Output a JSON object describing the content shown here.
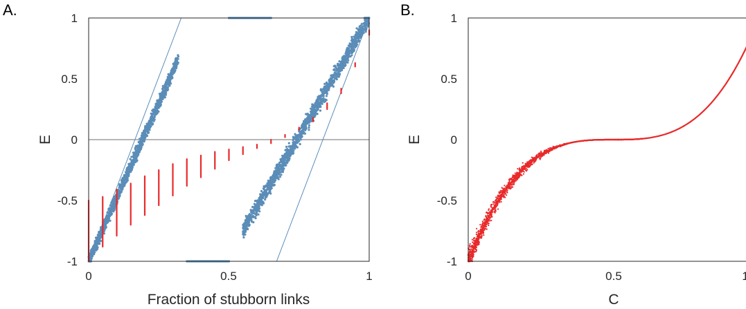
{
  "panels": [
    {
      "label": "A.",
      "xlabel": "Fraction of stubborn links",
      "ylabel": "E",
      "xticks": [
        "0",
        "0.5",
        "1"
      ],
      "yticks": [
        "1",
        "0.5",
        "0",
        "-0.5",
        "-1"
      ]
    },
    {
      "label": "B.",
      "xlabel": "C",
      "ylabel": "E",
      "xticks": [
        "0",
        "0.5",
        "1"
      ],
      "yticks": [
        "1",
        "0.5",
        "0",
        "-0.5",
        "-1"
      ]
    }
  ],
  "colors": {
    "blue": "#5b8db8",
    "red": "#e8292a",
    "axis": "#262626",
    "zero_line": "#6e6e6e"
  },
  "chart_data": [
    {
      "type": "scatter",
      "xlabel": "Fraction of stubborn links",
      "ylabel": "E",
      "xlim": [
        0,
        1
      ],
      "ylim": [
        -1,
        1
      ],
      "reference_line_y": 0,
      "series": [
        {
          "color": "#5b8db8",
          "bands": [
            {
              "x_range": [
                0,
                0.32
              ],
              "y_center_at_x_start": -1,
              "slope": 5.2,
              "width": 0.08
            },
            {
              "x_range": [
                0.55,
                1.0
              ],
              "y_center_at_x_start": -0.75,
              "slope": 3.9,
              "width": 0.1
            }
          ],
          "envelope": [
            [
              0,
              -1
            ],
            [
              0.33,
              1
            ],
            [
              1,
              1
            ],
            [
              0.67,
              -1
            ]
          ],
          "edge_points": [
            {
              "y": 1,
              "x_range": [
                0.5,
                0.65
              ]
            },
            {
              "y": -1,
              "x_range": [
                0.35,
                0.5
              ]
            }
          ]
        },
        {
          "color": "#e8292a",
          "x": [
            0,
            0.05,
            0.1,
            0.15,
            0.2,
            0.25,
            0.3,
            0.35,
            0.4,
            0.45,
            0.5,
            0.55,
            0.6,
            0.65,
            0.7,
            0.75,
            0.8,
            0.85,
            0.9,
            0.95,
            1.0
          ],
          "y_min": [
            -1.0,
            -0.88,
            -0.79,
            -0.7,
            -0.62,
            -0.54,
            -0.46,
            -0.38,
            -0.31,
            -0.24,
            -0.17,
            -0.12,
            -0.07,
            -0.03,
            0.02,
            0.08,
            0.15,
            0.25,
            0.38,
            0.6,
            0.86
          ],
          "y_max": [
            -0.5,
            -0.47,
            -0.41,
            -0.36,
            -0.3,
            -0.25,
            -0.2,
            -0.16,
            -0.13,
            -0.1,
            -0.08,
            -0.06,
            -0.04,
            0.0,
            0.04,
            0.1,
            0.18,
            0.3,
            0.42,
            0.63,
            0.9
          ]
        }
      ]
    },
    {
      "type": "scatter",
      "xlabel": "C",
      "ylabel": "E",
      "xlim": [
        0,
        1
      ],
      "ylim": [
        -1,
        1
      ],
      "series": [
        {
          "color": "#e8292a",
          "curve": {
            "x_range": [
              0,
              1
            ],
            "formula": "E = (2C - 1)^3",
            "spread_near_zero": 0.12
          }
        }
      ]
    }
  ]
}
